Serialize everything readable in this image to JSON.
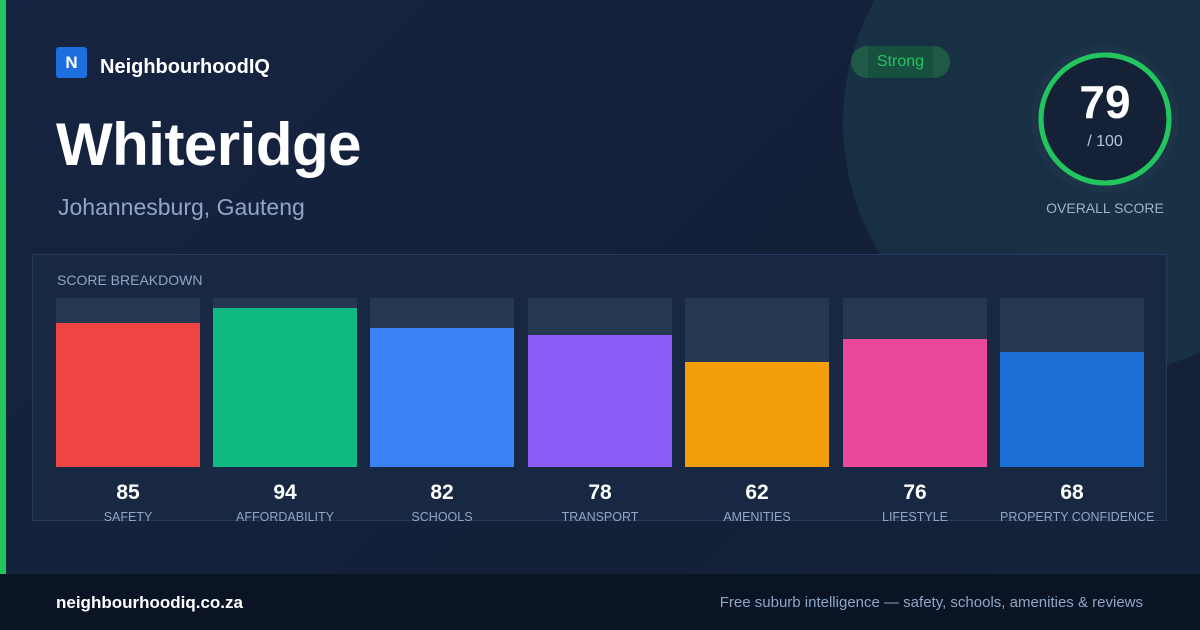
{
  "brand": {
    "logo_letter": "N",
    "name": "NeighbourhoodIQ"
  },
  "suburb": {
    "name": "Whiteridge",
    "location": "Johannesburg, Gauteng"
  },
  "rating": {
    "label": "Strong",
    "color": "#22c55e"
  },
  "overall": {
    "score": "79",
    "total": "/ 100",
    "caption": "OVERALL SCORE",
    "fraction": 0.79
  },
  "breakdown": {
    "title": "SCORE BREAKDOWN",
    "items": [
      {
        "label": "SAFETY",
        "score": "85",
        "value": 85,
        "color": "#ef4444"
      },
      {
        "label": "AFFORDABILITY",
        "score": "94",
        "value": 94,
        "color": "#10b981"
      },
      {
        "label": "SCHOOLS",
        "score": "82",
        "value": 82,
        "color": "#3b82f6"
      },
      {
        "label": "TRANSPORT",
        "score": "78",
        "value": 78,
        "color": "#8b5cf6"
      },
      {
        "label": "AMENITIES",
        "score": "62",
        "value": 62,
        "color": "#f59e0b"
      },
      {
        "label": "LIFESTYLE",
        "score": "76",
        "value": 76,
        "color": "#ec4899"
      },
      {
        "label": "PROPERTY CONFIDENCE",
        "score": "68",
        "value": 68,
        "color": "#1d6fd8"
      }
    ]
  },
  "footer": {
    "domain": "neighbourhoodiq.co.za",
    "tagline": "Free suburb intelligence — safety, schools, amenities & reviews"
  }
}
